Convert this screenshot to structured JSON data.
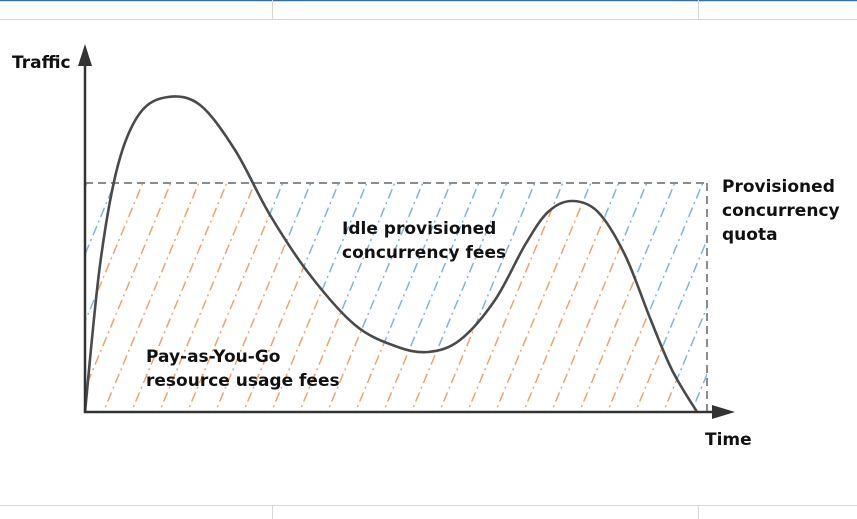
{
  "diagram": {
    "y_axis_label": "Traffic",
    "x_axis_label": "Time",
    "quota_label_lines": [
      "Provisioned",
      "concurrency",
      "quota"
    ],
    "idle_fee_label_lines": [
      "Idle provisioned",
      "concurrency fees"
    ],
    "payg_fee_label_lines": [
      "Pay-as-You-Go",
      "resource usage fees"
    ]
  },
  "colors": {
    "curve": "#4a4a4a",
    "axis": "#333333",
    "quota_line": "#8c8c8c",
    "payg_hatch": "#f2a36b",
    "idle_hatch": "#7fb3e0",
    "frame_border": "#d8d8d8",
    "top_border": "#3a6d99"
  }
}
